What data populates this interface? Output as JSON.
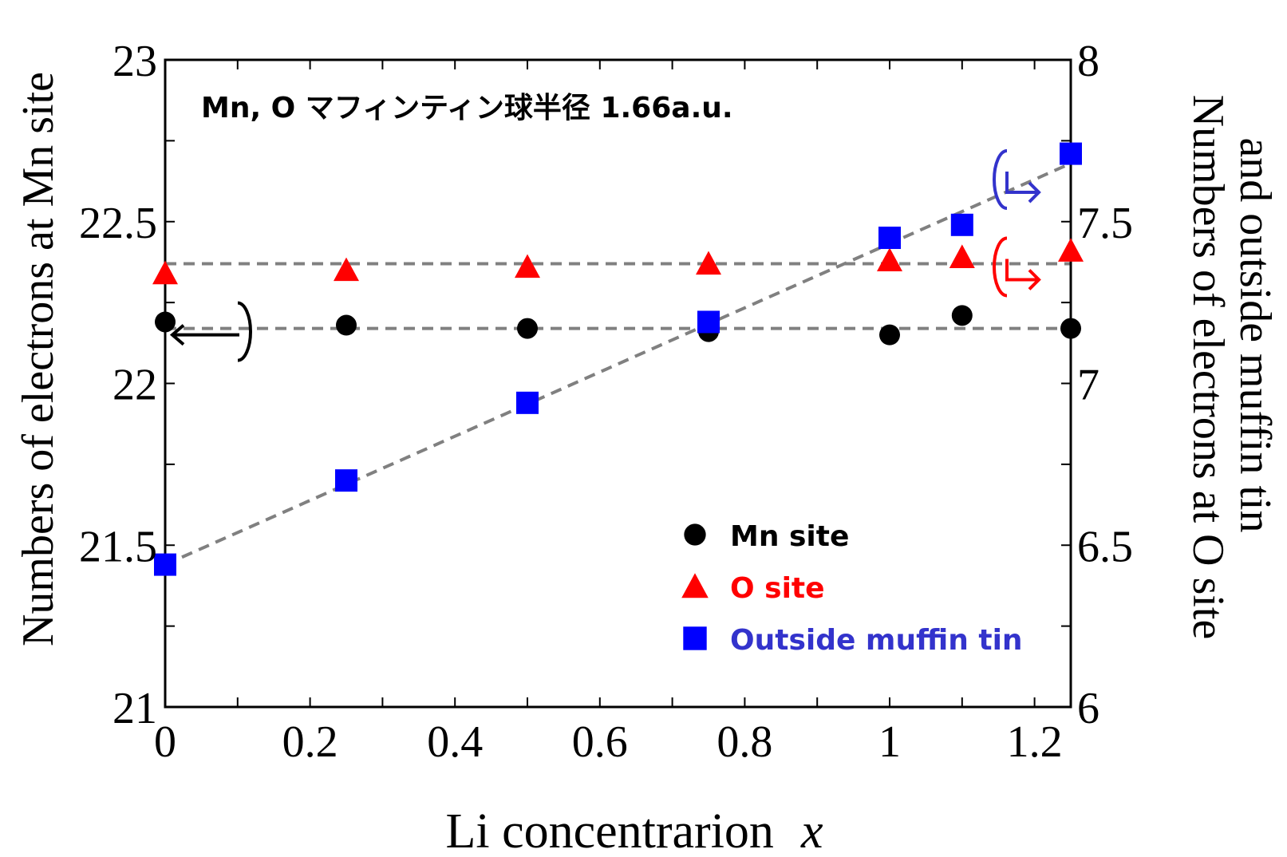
{
  "chart_data": {
    "type": "scatter",
    "annotation": "Mn, O マフィンティン球半径 1.66a.u.",
    "xlabel": "Li concentrarion",
    "xlabel_var": "x",
    "ylabel_left": "Numbers of electrons at Mn site",
    "ylabel_right_line1": "Numbers of electrons at O site",
    "ylabel_right_line2": "and outside muffin tin",
    "xlim": [
      0,
      1.25
    ],
    "ylim_left": [
      21,
      23
    ],
    "ylim_right": [
      6,
      8
    ],
    "x_ticks": [
      "0",
      "0.2",
      "0.4",
      "0.6",
      "0.8",
      "1",
      "1.2"
    ],
    "x_tick_values": [
      0,
      0.2,
      0.4,
      0.6,
      0.8,
      1.0,
      1.2
    ],
    "y_left_ticks": [
      "21",
      "21.5",
      "22",
      "22.5",
      "23"
    ],
    "y_left_tick_values": [
      21,
      21.5,
      22,
      22.5,
      23
    ],
    "y_right_ticks": [
      "6",
      "6.5",
      "7",
      "7.5",
      "8"
    ],
    "y_right_tick_values": [
      6,
      6.5,
      7,
      7.5,
      8
    ],
    "legend_position": "bottom-right",
    "series": [
      {
        "name": "Mn site",
        "axis": "left",
        "marker": "circle",
        "color": "#000000",
        "x": [
          0,
          0.25,
          0.5,
          0.75,
          1.0,
          1.1,
          1.25
        ],
        "y": [
          22.19,
          22.18,
          22.17,
          22.16,
          22.15,
          22.21,
          22.17
        ]
      },
      {
        "name": "O site",
        "axis": "right",
        "marker": "triangle",
        "color": "#ff0000",
        "x": [
          0,
          0.25,
          0.5,
          0.75,
          1.0,
          1.1,
          1.25
        ],
        "y": [
          7.34,
          7.35,
          7.36,
          7.37,
          7.38,
          7.39,
          7.41
        ]
      },
      {
        "name": "Outside muffin tin",
        "axis": "right",
        "marker": "square",
        "color": "#0000ff",
        "x": [
          0,
          0.25,
          0.5,
          0.75,
          1.0,
          1.1,
          1.25
        ],
        "y": [
          6.44,
          6.7,
          6.94,
          7.19,
          7.45,
          7.49,
          7.71
        ]
      }
    ],
    "reference_lines": [
      {
        "axis": "right",
        "from": [
          0,
          7.37
        ],
        "to": [
          1.25,
          7.37
        ]
      },
      {
        "axis": "left",
        "from": [
          0,
          22.17
        ],
        "to": [
          1.25,
          22.17
        ]
      },
      {
        "axis": "right",
        "from": [
          0,
          6.44
        ],
        "to": [
          1.25,
          7.68
        ]
      }
    ],
    "axis_indicators": [
      {
        "series": "Mn site",
        "points_to": "left",
        "color": "#000000"
      },
      {
        "series": "O site",
        "points_to": "right",
        "color": "#ff0000"
      },
      {
        "series": "Outside muffin tin",
        "points_to": "right",
        "color": "#3333cc"
      }
    ],
    "legend_text_colors": [
      "#000000",
      "#ff0000",
      "#3333cc"
    ],
    "line_color": "#808080"
  }
}
